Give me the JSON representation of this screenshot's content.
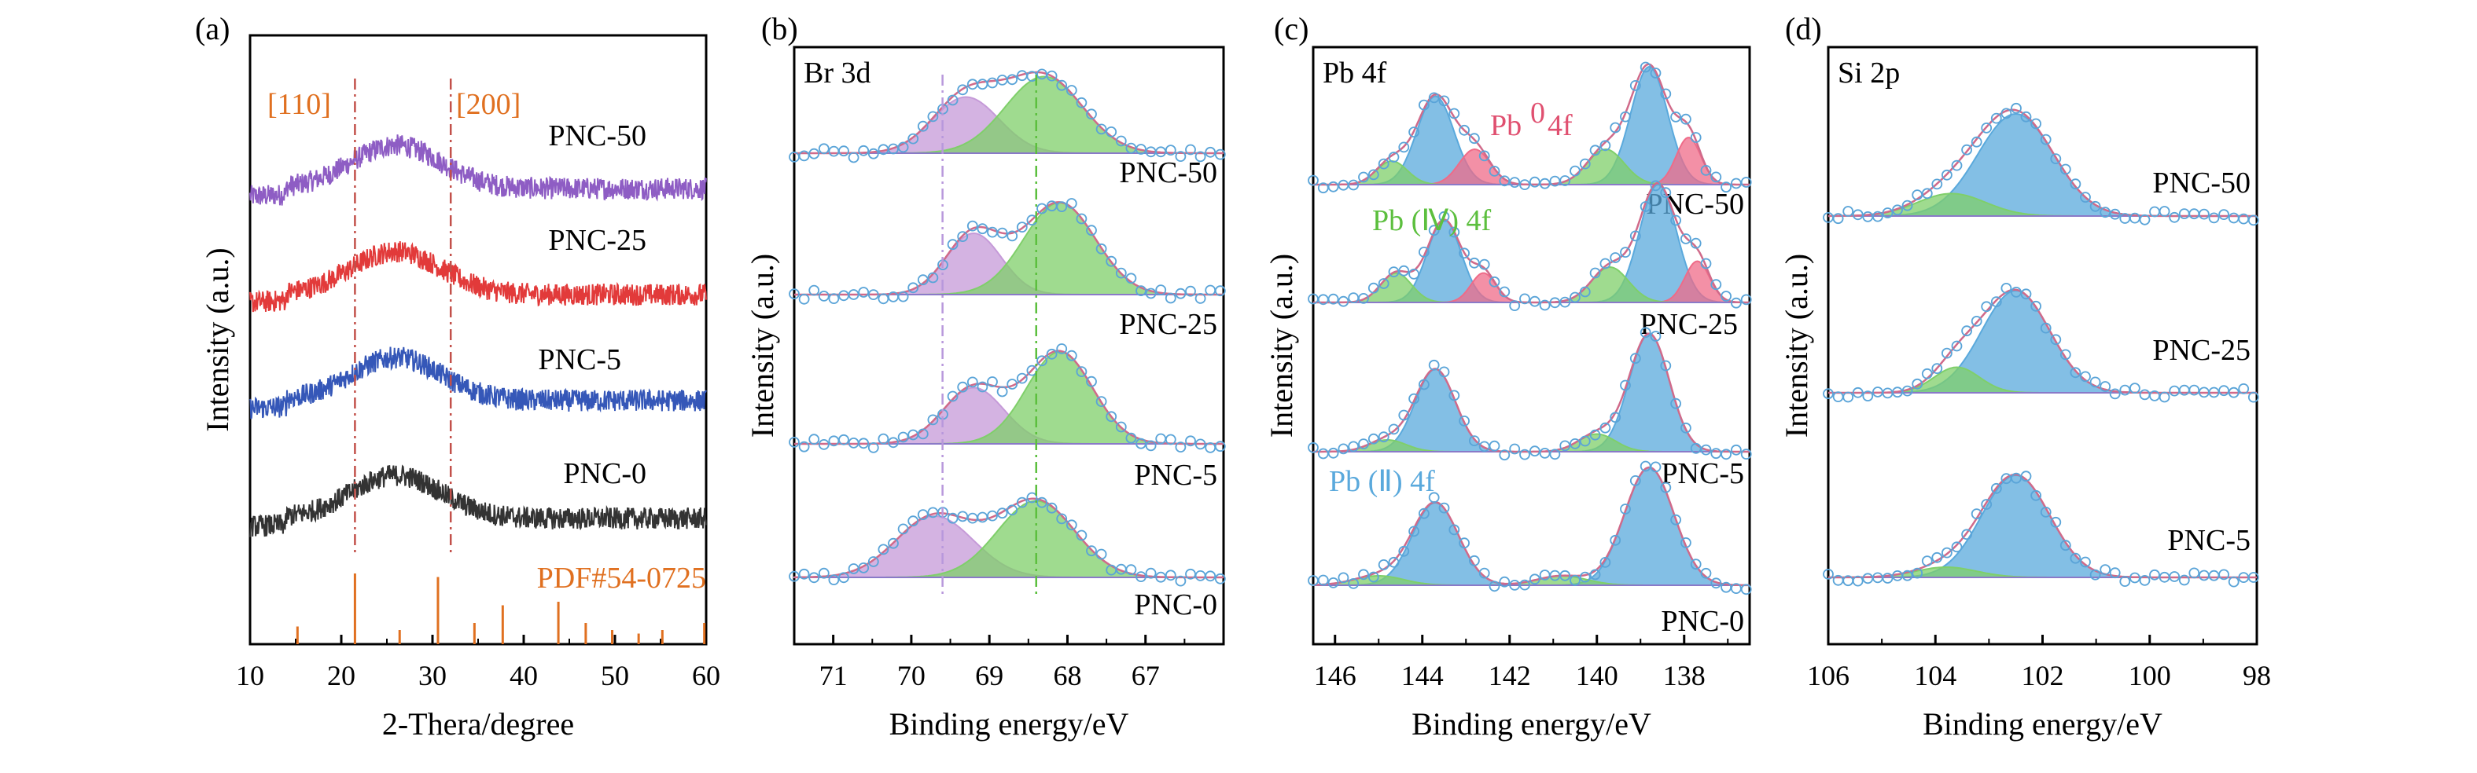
{
  "colors": {
    "xrd_pnc50": "#8e5dc4",
    "xrd_pnc25": "#e23a3a",
    "xrd_pnc5": "#3557b8",
    "xrd_pnc0": "#333333",
    "pdf": "#e07020",
    "purple_fill": "#c59ad8",
    "green_fill": "#7fcf6a",
    "blue_fill": "#5aa9dc",
    "pink_fill": "#ef6b88",
    "envelope": "#d06a8a",
    "points": "#5aa4d8",
    "baseline": "#8a7ac8"
  },
  "chart_data": [
    {
      "panel": "(a)",
      "type": "line",
      "xlabel": "2-Thera/degree",
      "ylabel": "Intensity (a.u.)",
      "xlim": [
        10,
        60
      ],
      "xticks": [
        10,
        20,
        30,
        40,
        50,
        60
      ],
      "annotations": [
        "[110]",
        "[200]",
        "PDF#54-0725"
      ],
      "reference_lines": [
        21.5,
        32
      ],
      "series": [
        {
          "name": "PNC-50",
          "peak_center": 26,
          "noise": true
        },
        {
          "name": "PNC-25",
          "peak_center": 26,
          "noise": true
        },
        {
          "name": "PNC-5",
          "peak_center": 26,
          "noise": true
        },
        {
          "name": "PNC-0",
          "peak_center": 26,
          "noise": true
        }
      ],
      "pdf_sticks": {
        "x": [
          15.2,
          21.5,
          26.4,
          30.6,
          34.6,
          37.7,
          43.8,
          46.8,
          49.7,
          52.6,
          55.2,
          59.8
        ],
        "h": [
          0.25,
          1.0,
          0.2,
          0.95,
          0.3,
          0.55,
          0.6,
          0.3,
          0.2,
          0.15,
          0.2,
          0.3
        ]
      }
    },
    {
      "panel": "(b)",
      "type": "area",
      "title": "Br 3d",
      "xlabel": "Binding energy/eV",
      "ylabel": "Intensity (a.u.)",
      "xlim": [
        71.5,
        66
      ],
      "xticks": [
        71,
        70,
        69,
        68,
        67
      ],
      "reference_lines": [
        69.6,
        68.4
      ],
      "series": [
        {
          "name": "PNC-50",
          "peaks": [
            {
              "c": 69.3,
              "w": 0.6,
              "h": 0.55,
              "color": "purple"
            },
            {
              "c": 68.3,
              "w": 0.7,
              "h": 0.75,
              "color": "green"
            }
          ]
        },
        {
          "name": "PNC-25",
          "peaks": [
            {
              "c": 69.2,
              "w": 0.5,
              "h": 0.6,
              "color": "purple"
            },
            {
              "c": 68.1,
              "w": 0.65,
              "h": 0.9,
              "color": "green"
            }
          ]
        },
        {
          "name": "PNC-5",
          "peaks": [
            {
              "c": 69.2,
              "w": 0.55,
              "h": 0.55,
              "color": "purple"
            },
            {
              "c": 68.1,
              "w": 0.6,
              "h": 0.9,
              "color": "green"
            }
          ]
        },
        {
          "name": "PNC-0",
          "peaks": [
            {
              "c": 69.7,
              "w": 0.7,
              "h": 0.6,
              "color": "purple"
            },
            {
              "c": 68.4,
              "w": 0.7,
              "h": 0.75,
              "color": "green"
            }
          ]
        }
      ]
    },
    {
      "panel": "(c)",
      "type": "area",
      "title": "Pb 4f",
      "xlabel": "Binding energy/eV",
      "ylabel": "Intensity (a.u.)",
      "xlim": [
        146.5,
        136.5
      ],
      "xticks": [
        146,
        144,
        142,
        140,
        138
      ],
      "annotations": [
        "Pb⁰ 4f",
        "Pb (Ⅳ) 4f",
        "Pb (Ⅱ) 4f"
      ],
      "series": [
        {
          "name": "PNC-50",
          "peaks": [
            {
              "c": 143.7,
              "w": 0.6,
              "h": 0.75,
              "color": "blue"
            },
            {
              "c": 138.8,
              "w": 0.6,
              "h": 1.0,
              "color": "blue"
            },
            {
              "c": 142.8,
              "w": 0.5,
              "h": 0.3,
              "color": "pink"
            },
            {
              "c": 137.9,
              "w": 0.4,
              "h": 0.4,
              "color": "pink"
            },
            {
              "c": 144.7,
              "w": 0.5,
              "h": 0.2,
              "color": "green"
            },
            {
              "c": 139.8,
              "w": 0.6,
              "h": 0.3,
              "color": "green"
            }
          ]
        },
        {
          "name": "PNC-25",
          "peaks": [
            {
              "c": 143.5,
              "w": 0.55,
              "h": 0.7,
              "color": "blue"
            },
            {
              "c": 138.6,
              "w": 0.6,
              "h": 1.0,
              "color": "blue"
            },
            {
              "c": 142.6,
              "w": 0.4,
              "h": 0.25,
              "color": "pink"
            },
            {
              "c": 137.7,
              "w": 0.4,
              "h": 0.35,
              "color": "pink"
            },
            {
              "c": 144.6,
              "w": 0.5,
              "h": 0.25,
              "color": "green"
            },
            {
              "c": 139.7,
              "w": 0.6,
              "h": 0.3,
              "color": "green"
            }
          ]
        },
        {
          "name": "PNC-5",
          "peaks": [
            {
              "c": 143.7,
              "w": 0.65,
              "h": 0.7,
              "color": "blue"
            },
            {
              "c": 138.8,
              "w": 0.65,
              "h": 1.0,
              "color": "blue"
            },
            {
              "c": 144.8,
              "w": 0.6,
              "h": 0.1,
              "color": "green"
            },
            {
              "c": 140.0,
              "w": 0.6,
              "h": 0.15,
              "color": "green"
            }
          ]
        },
        {
          "name": "PNC-0",
          "peaks": [
            {
              "c": 143.7,
              "w": 0.75,
              "h": 0.7,
              "color": "blue"
            },
            {
              "c": 138.8,
              "w": 0.8,
              "h": 1.0,
              "color": "blue"
            },
            {
              "c": 145.0,
              "w": 0.8,
              "h": 0.08,
              "color": "green"
            },
            {
              "c": 140.8,
              "w": 0.8,
              "h": 0.08,
              "color": "green"
            }
          ]
        }
      ]
    },
    {
      "panel": "(d)",
      "type": "area",
      "title": "Si 2p",
      "xlabel": "Binding energy/eV",
      "ylabel": "Intensity (a.u.)",
      "xlim": [
        106,
        98
      ],
      "xticks": [
        106,
        104,
        102,
        100,
        98
      ],
      "series": [
        {
          "name": "PNC-50",
          "peaks": [
            {
              "c": 102.5,
              "w": 1.0,
              "h": 1.0,
              "color": "blue"
            },
            {
              "c": 103.7,
              "w": 0.9,
              "h": 0.22,
              "color": "green"
            }
          ]
        },
        {
          "name": "PNC-25",
          "peaks": [
            {
              "c": 102.5,
              "w": 0.9,
              "h": 1.0,
              "color": "blue"
            },
            {
              "c": 103.6,
              "w": 0.6,
              "h": 0.25,
              "color": "green"
            }
          ]
        },
        {
          "name": "PNC-5",
          "peaks": [
            {
              "c": 102.5,
              "w": 0.9,
              "h": 1.0,
              "color": "blue"
            },
            {
              "c": 103.8,
              "w": 0.8,
              "h": 0.1,
              "color": "green"
            }
          ]
        }
      ]
    }
  ]
}
